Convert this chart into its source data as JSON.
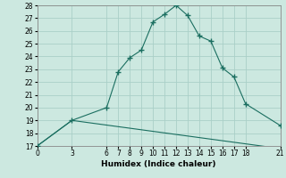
{
  "xlabel": "Humidex (Indice chaleur)",
  "bg_color": "#cce8e0",
  "line_color": "#1a6e60",
  "grid_color": "#aacfc8",
  "xlim": [
    0,
    21
  ],
  "ylim": [
    17,
    28
  ],
  "yticks": [
    17,
    18,
    19,
    20,
    21,
    22,
    23,
    24,
    25,
    26,
    27,
    28
  ],
  "xticks": [
    0,
    3,
    6,
    7,
    8,
    9,
    10,
    11,
    12,
    13,
    14,
    15,
    16,
    17,
    18,
    21
  ],
  "curve1_x": [
    0,
    3,
    6,
    7,
    8,
    9,
    10,
    11,
    12,
    13,
    14,
    15,
    16,
    17,
    18,
    21
  ],
  "curve1_y": [
    17.0,
    19.0,
    20.0,
    22.8,
    23.9,
    24.5,
    26.7,
    27.3,
    28.0,
    27.2,
    25.6,
    25.2,
    23.1,
    22.4,
    20.3,
    18.6
  ],
  "curve2_x": [
    0,
    3,
    21
  ],
  "curve2_y": [
    17.0,
    19.0,
    16.8
  ],
  "tick_fontsize": 5.5,
  "xlabel_fontsize": 6.5
}
